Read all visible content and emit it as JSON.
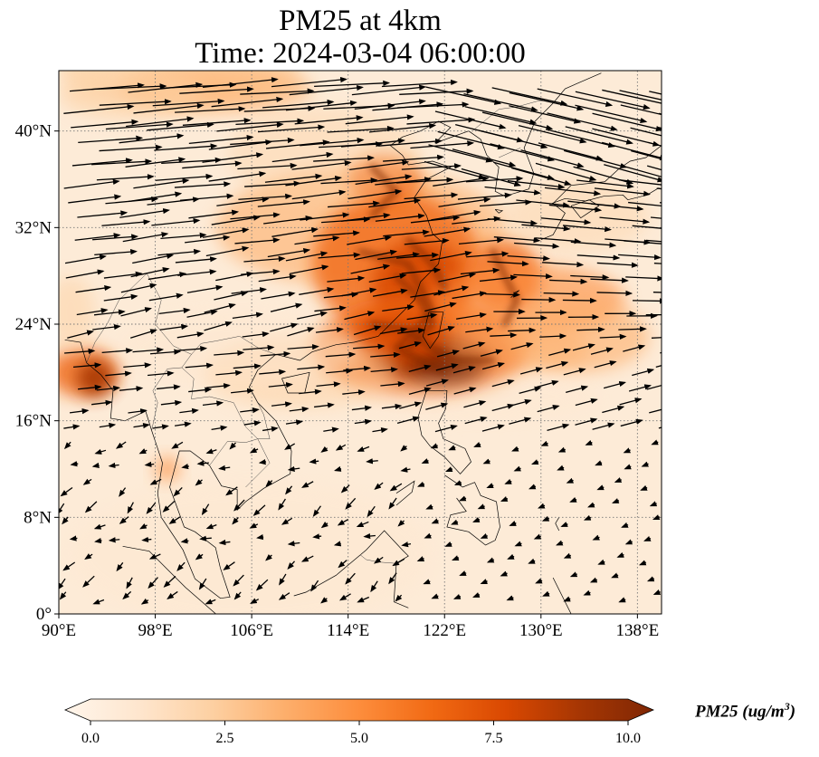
{
  "title_line1": "PM25 at 4km",
  "title_line2": "Time: 2024-03-04 06:00:00",
  "map": {
    "lon_range": [
      90,
      140
    ],
    "lat_range": [
      0,
      45
    ],
    "lon_ticks": [
      90,
      98,
      106,
      114,
      122,
      130,
      138
    ],
    "lon_tick_labels": [
      "90°E",
      "98°E",
      "106°E",
      "114°E",
      "122°E",
      "130°E",
      "138°E"
    ],
    "lat_ticks": [
      0,
      8,
      16,
      24,
      32,
      40
    ],
    "lat_tick_labels": [
      "0°",
      "8°N",
      "16°N",
      "24°N",
      "32°N",
      "40°N"
    ],
    "gridlines": true,
    "field": "PM25",
    "overlay": "wind vectors"
  },
  "colorbar": {
    "min": 0,
    "max": 10,
    "ticks": [
      0.0,
      2.5,
      5.0,
      7.5,
      10.0
    ],
    "tick_labels": [
      "0.0",
      "2.5",
      "5.0",
      "7.5",
      "10.0"
    ],
    "label": "PM25 (ug/m",
    "label_sup": "3",
    "label_end": ")",
    "colormap": [
      "#fff5eb",
      "#fee6ce",
      "#fdd0a2",
      "#fdae6b",
      "#fd8d3c",
      "#f16913",
      "#d94801",
      "#a63603",
      "#7f2704"
    ]
  },
  "colors": {
    "background_field": "#fdebd7",
    "coastline": "#000000",
    "vector": "#000000"
  }
}
